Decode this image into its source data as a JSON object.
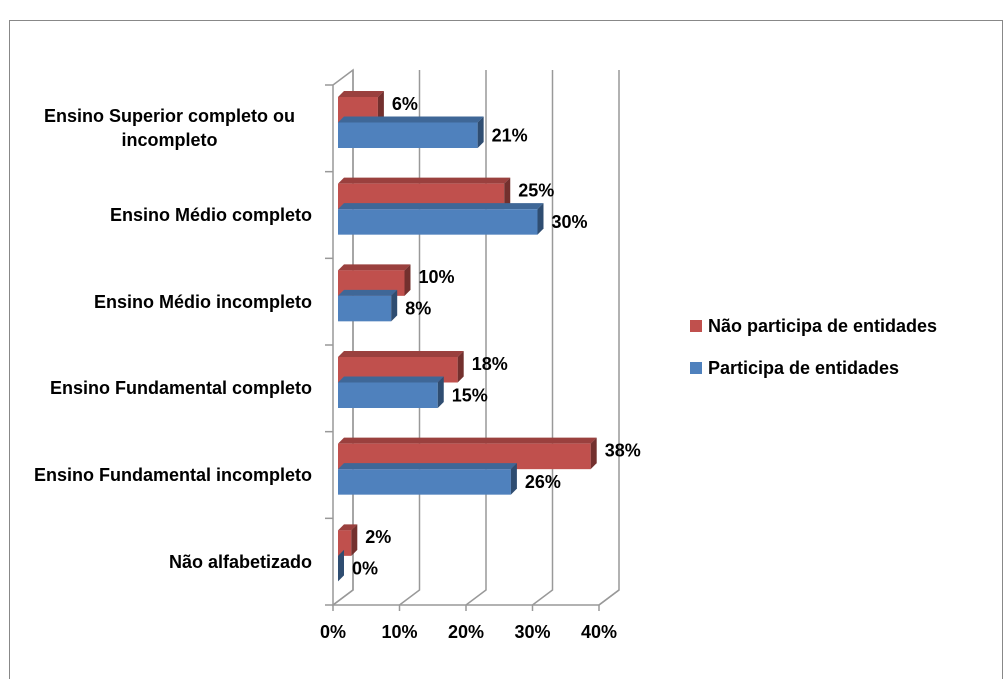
{
  "chart_data": {
    "type": "bar3d_horizontal",
    "categories": [
      "Ensino Superior completo ou incompleto",
      "Ensino Médio completo",
      "Ensino Médio incompleto",
      "Ensino Fundamental completo",
      "Ensino Fundamental incompleto",
      "Não alfabetizado"
    ],
    "series": [
      {
        "name": "Não participa de entidades",
        "color": "#c0504d",
        "values": [
          6,
          25,
          10,
          18,
          38,
          2
        ],
        "value_labels": [
          "6%",
          "25%",
          "10%",
          "18%",
          "38%",
          "2%"
        ]
      },
      {
        "name": "Participa de entidades",
        "color": "#4f81bd",
        "values": [
          21,
          30,
          8,
          15,
          26,
          0
        ],
        "value_labels": [
          "21%",
          "30%",
          "8%",
          "15%",
          "26%",
          "0%"
        ]
      }
    ],
    "xlim": [
      0,
      40
    ],
    "xticks": [
      {
        "value": 0,
        "label": "0%"
      },
      {
        "value": 10,
        "label": "10%"
      },
      {
        "value": 20,
        "label": "20%"
      },
      {
        "value": 30,
        "label": "30%"
      },
      {
        "value": 40,
        "label": "40%"
      }
    ],
    "grid": true,
    "legend": "right"
  }
}
